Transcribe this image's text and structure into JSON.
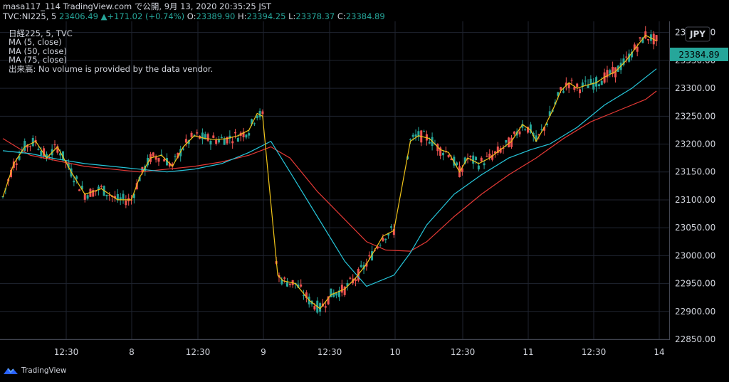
{
  "header": {
    "line1": "masa117_114 TradingView.com で公開, 9月 13, 2020 20:35:25 JST",
    "symbol": "TVC:NI225, 5",
    "last": "23406.49",
    "arrow": "▲",
    "change": "+171.02 (+0.74%)",
    "o_label": "O:",
    "o": "23389.90",
    "h_label": "H:",
    "h": "23394.25",
    "l_label": "L:",
    "l": "23378.37",
    "c_label": "C:",
    "c": "23384.89"
  },
  "legend": {
    "title": "日経225, 5, TVC",
    "ma5": "MA (5, close)",
    "ma50": "MA (50, close)",
    "ma75": "MA (75, close)",
    "volume_note": "出来高: No volume is provided by the data vendor."
  },
  "currency": "JPY",
  "footer": {
    "brand": "TradingView"
  },
  "colors": {
    "up": "#26a69a",
    "down": "#ef5350",
    "ma5": "#f0c419",
    "ma50": "#26c6da",
    "ma75": "#e53935",
    "grid": "#1f2430",
    "price_tag": "#26a69a",
    "text": "#d1d4dc"
  },
  "chart_data": {
    "type": "candlestick",
    "x_ticks": [
      "12:30",
      "8",
      "12:30",
      "9",
      "12:30",
      "10",
      "12:30",
      "11",
      "12:30",
      "14"
    ],
    "ylim": [
      22850,
      23420
    ],
    "y_ticks": [
      22850,
      22900,
      22950,
      23000,
      23050,
      23100,
      23150,
      23200,
      23250,
      23300,
      23350,
      23400
    ],
    "last_price": "23384.89",
    "series": [
      {
        "name": "MA (5, close)",
        "color": "#f0c419",
        "points": [
          [
            0,
            23105
          ],
          [
            8,
            23165
          ],
          [
            16,
            23195
          ],
          [
            24,
            23205
          ],
          [
            32,
            23175
          ],
          [
            40,
            23195
          ],
          [
            50,
            23150
          ],
          [
            60,
            23110
          ],
          [
            72,
            23120
          ],
          [
            84,
            23100
          ],
          [
            94,
            23100
          ],
          [
            100,
            23140
          ],
          [
            108,
            23175
          ],
          [
            116,
            23180
          ],
          [
            124,
            23160
          ],
          [
            132,
            23195
          ],
          [
            140,
            23215
          ],
          [
            148,
            23210
          ],
          [
            156,
            23208
          ],
          [
            164,
            23210
          ],
          [
            172,
            23215
          ],
          [
            180,
            23225
          ],
          [
            186,
            23255
          ],
          [
            190,
            23250
          ],
          [
            201,
            22965
          ],
          [
            205,
            22955
          ],
          [
            214,
            22950
          ],
          [
            224,
            22920
          ],
          [
            232,
            22905
          ],
          [
            240,
            22930
          ],
          [
            250,
            22940
          ],
          [
            258,
            22960
          ],
          [
            266,
            22985
          ],
          [
            272,
            23010
          ],
          [
            278,
            23035
          ],
          [
            286,
            23045
          ],
          [
            298,
            23205
          ],
          [
            304,
            23215
          ],
          [
            312,
            23210
          ],
          [
            320,
            23190
          ],
          [
            326,
            23185
          ],
          [
            334,
            23150
          ],
          [
            340,
            23175
          ],
          [
            348,
            23165
          ],
          [
            356,
            23175
          ],
          [
            364,
            23190
          ],
          [
            372,
            23205
          ],
          [
            380,
            23235
          ],
          [
            386,
            23225
          ],
          [
            390,
            23205
          ],
          [
            396,
            23230
          ],
          [
            402,
            23260
          ],
          [
            408,
            23295
          ],
          [
            414,
            23310
          ],
          [
            420,
            23300
          ],
          [
            426,
            23305
          ],
          [
            434,
            23310
          ],
          [
            440,
            23320
          ],
          [
            448,
            23330
          ],
          [
            456,
            23350
          ],
          [
            462,
            23370
          ],
          [
            470,
            23395
          ],
          [
            478,
            23385
          ]
        ]
      },
      {
        "name": "MA (50, close)",
        "color": "#26c6da",
        "points": [
          [
            0,
            23188
          ],
          [
            20,
            23183
          ],
          [
            40,
            23173
          ],
          [
            60,
            23165
          ],
          [
            80,
            23160
          ],
          [
            100,
            23155
          ],
          [
            120,
            23150
          ],
          [
            140,
            23155
          ],
          [
            160,
            23165
          ],
          [
            180,
            23185
          ],
          [
            196,
            23205
          ],
          [
            210,
            23150
          ],
          [
            230,
            23070
          ],
          [
            250,
            22990
          ],
          [
            266,
            22945
          ],
          [
            286,
            22965
          ],
          [
            298,
            23005
          ],
          [
            310,
            23055
          ],
          [
            330,
            23110
          ],
          [
            350,
            23145
          ],
          [
            370,
            23175
          ],
          [
            386,
            23190
          ],
          [
            400,
            23200
          ],
          [
            420,
            23230
          ],
          [
            440,
            23270
          ],
          [
            460,
            23300
          ],
          [
            478,
            23335
          ]
        ]
      },
      {
        "name": "MA (75, close)",
        "color": "#e53935",
        "points": [
          [
            0,
            23210
          ],
          [
            20,
            23180
          ],
          [
            40,
            23170
          ],
          [
            60,
            23160
          ],
          [
            80,
            23155
          ],
          [
            100,
            23150
          ],
          [
            120,
            23155
          ],
          [
            140,
            23160
          ],
          [
            160,
            23168
          ],
          [
            180,
            23180
          ],
          [
            196,
            23195
          ],
          [
            210,
            23175
          ],
          [
            230,
            23115
          ],
          [
            250,
            23065
          ],
          [
            266,
            23025
          ],
          [
            280,
            23010
          ],
          [
            298,
            23008
          ],
          [
            310,
            23025
          ],
          [
            330,
            23070
          ],
          [
            350,
            23110
          ],
          [
            370,
            23145
          ],
          [
            390,
            23175
          ],
          [
            410,
            23210
          ],
          [
            430,
            23240
          ],
          [
            450,
            23260
          ],
          [
            470,
            23280
          ],
          [
            478,
            23295
          ]
        ]
      }
    ]
  }
}
